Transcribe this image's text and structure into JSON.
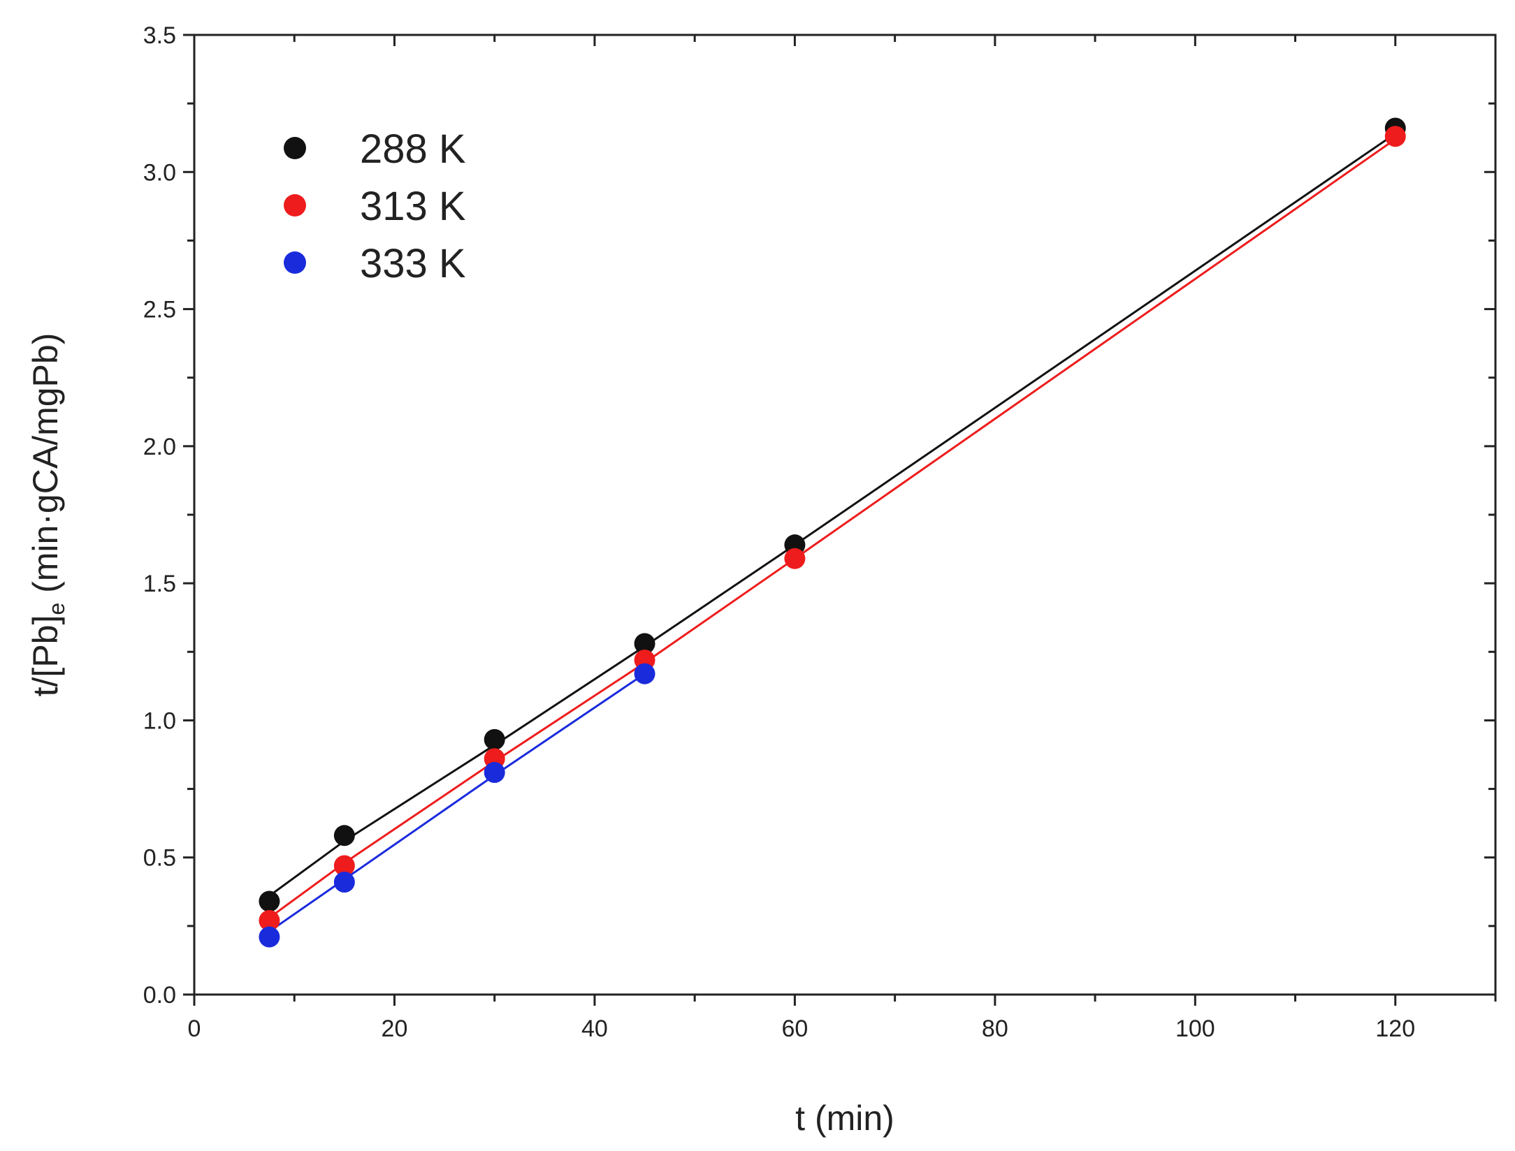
{
  "chart_data": {
    "type": "scatter",
    "xlabel": "t (min)",
    "ylabel_parts": {
      "before": "t/[Pb]",
      "subscript": "e",
      "after": " (min·gCA/mgPb)"
    },
    "xlim": [
      0,
      130
    ],
    "ylim": [
      0,
      3.5
    ],
    "x_ticks": [
      "0",
      "20",
      "40",
      "60",
      "80",
      "100",
      "120"
    ],
    "x_tick_values": [
      0,
      20,
      40,
      60,
      80,
      100,
      120
    ],
    "y_ticks": [
      "0.0",
      "0.5",
      "1.0",
      "1.5",
      "2.0",
      "2.5",
      "3.0",
      "3.5"
    ],
    "y_tick_values": [
      0,
      0.5,
      1.0,
      1.5,
      2.0,
      2.5,
      3.0,
      3.5
    ],
    "grid": false,
    "legend_position": "top-left",
    "series": [
      {
        "name": "288 K",
        "color": "#111111",
        "x": [
          7.5,
          15,
          30,
          45,
          60,
          120
        ],
        "y": [
          0.34,
          0.58,
          0.93,
          1.28,
          1.64,
          3.16
        ],
        "fit": [
          [
            7.5,
            0.36
          ],
          [
            15,
            0.56
          ],
          [
            30,
            0.91
          ],
          [
            45,
            1.27
          ],
          [
            60,
            1.64
          ],
          [
            120,
            3.14
          ]
        ]
      },
      {
        "name": "313 K",
        "color": "#ee1c1c",
        "x": [
          7.5,
          15,
          30,
          45,
          60,
          120
        ],
        "y": [
          0.27,
          0.47,
          0.86,
          1.22,
          1.59,
          3.13
        ],
        "fit": [
          [
            7.5,
            0.28
          ],
          [
            15,
            0.48
          ],
          [
            30,
            0.85
          ],
          [
            45,
            1.21
          ],
          [
            60,
            1.59
          ],
          [
            120,
            3.12
          ]
        ]
      },
      {
        "name": "333 K",
        "color": "#1a2bdc",
        "x": [
          7.5,
          15,
          30,
          45
        ],
        "y": [
          0.21,
          0.41,
          0.81,
          1.17
        ],
        "fit": [
          [
            7.5,
            0.23
          ],
          [
            15,
            0.42
          ],
          [
            30,
            0.8
          ],
          [
            45,
            1.17
          ]
        ]
      }
    ]
  }
}
